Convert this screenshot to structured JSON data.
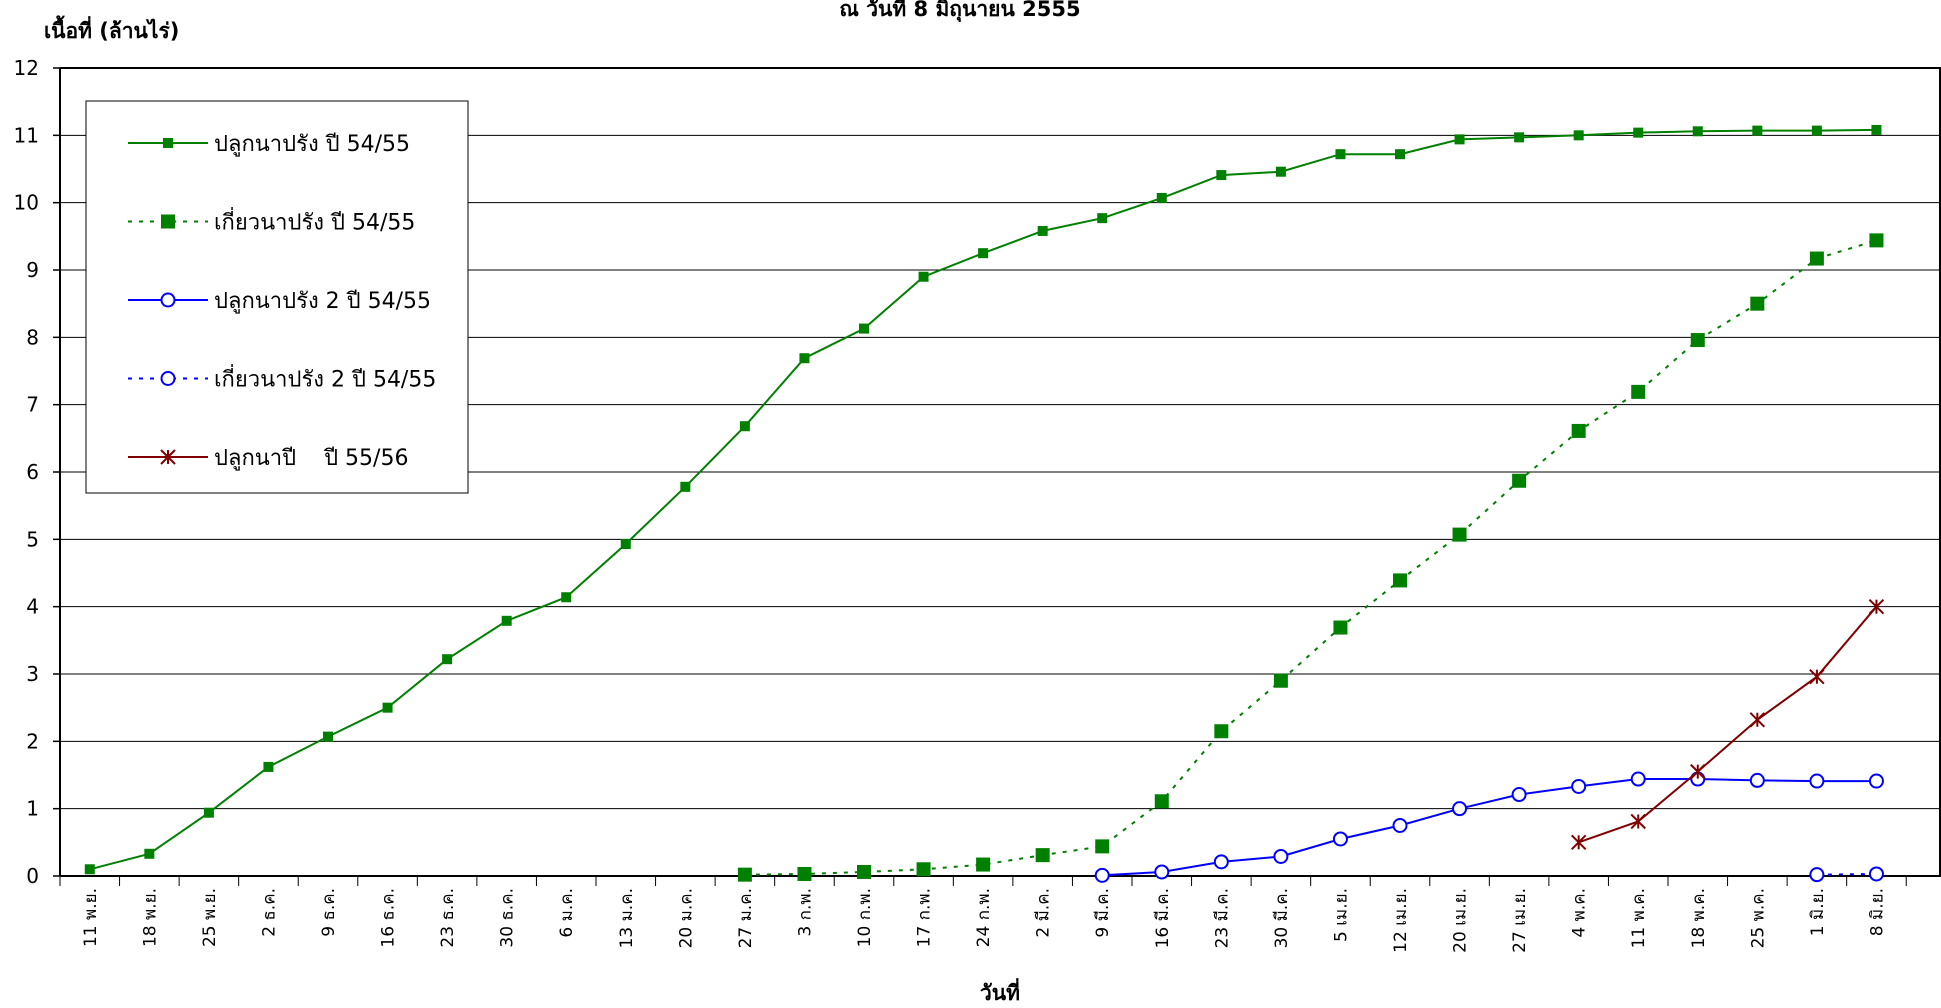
{
  "chart_data": {
    "type": "line",
    "title": "ณ  วันที่ 8 มิถุนายน 2555",
    "ylabel": "เนื้อที่ (ล้านไร่)",
    "xlabel": "วันที่",
    "ylim": [
      0,
      12
    ],
    "yticks": [
      "0",
      "1",
      "2",
      "3",
      "4",
      "5",
      "6",
      "7",
      "8",
      "9",
      "10",
      "11",
      "12"
    ],
    "grid": true,
    "legend_position": "top-left",
    "categories": [
      "11 พ.ย.",
      "18 พ.ย.",
      "25 พ.ย.",
      "2 ธ.ค.",
      "9 ธ.ค.",
      "16 ธ.ค.",
      "23 ธ.ค.",
      "30 ธ.ค.",
      "6 ม.ค.",
      "13 ม.ค.",
      "20 ม.ค.",
      "27 ม.ค.",
      "3 ก.พ.",
      "10 ก.พ.",
      "17 ก.พ.",
      "24 ก.พ.",
      "2 มี.ค.",
      "9 มี.ค.",
      "16 มี.ค.",
      "23 มี.ค.",
      "30 มี.ค.",
      "5 เม.ย.",
      "12 เม.ย.",
      "20 เม.ย.",
      "27 เม.ย.",
      "4 พ.ค.",
      "11 พ.ค.",
      "18 พ.ค.",
      "25 พ.ค.",
      "1 มิ.ย.",
      "8 มิ.ย."
    ],
    "series": [
      {
        "name": "ปลูกนาปรัง ปี 54/55",
        "color": "#008000",
        "line": "solid",
        "marker": "square-small",
        "values": [
          0.1,
          0.33,
          0.94,
          1.62,
          2.07,
          2.5,
          3.22,
          3.79,
          4.14,
          4.93,
          5.78,
          6.68,
          7.69,
          8.13,
          8.9,
          9.25,
          9.58,
          9.77,
          10.07,
          10.41,
          10.46,
          10.72,
          10.72,
          10.94,
          10.97,
          11.0,
          11.04,
          11.06,
          11.07,
          11.07,
          11.08
        ]
      },
      {
        "name": "เกี่ยวนาปรัง ปี 54/55",
        "color": "#008000",
        "line": "dotted",
        "marker": "square-large",
        "values": [
          null,
          null,
          null,
          null,
          null,
          null,
          null,
          null,
          null,
          null,
          null,
          0.02,
          0.03,
          0.06,
          0.1,
          0.17,
          0.31,
          0.44,
          1.11,
          2.15,
          2.9,
          3.69,
          4.39,
          5.07,
          5.87,
          6.61,
          7.19,
          7.96,
          8.5,
          9.17,
          9.44
        ]
      },
      {
        "name": "ปลูกนาปรัง 2 ปี 54/55",
        "color": "#0000ff",
        "line": "solid",
        "marker": "circle",
        "values": [
          null,
          null,
          null,
          null,
          null,
          null,
          null,
          null,
          null,
          null,
          null,
          null,
          null,
          null,
          null,
          null,
          null,
          0.01,
          0.06,
          0.21,
          0.29,
          0.55,
          0.75,
          1.0,
          1.21,
          1.33,
          1.44,
          1.44,
          1.42,
          1.41,
          1.41
        ]
      },
      {
        "name": "เกี่ยวนาปรัง 2 ปี 54/55",
        "color": "#0000ff",
        "line": "dotted",
        "marker": "circle",
        "values": [
          null,
          null,
          null,
          null,
          null,
          null,
          null,
          null,
          null,
          null,
          null,
          null,
          null,
          null,
          null,
          null,
          null,
          null,
          null,
          null,
          null,
          null,
          null,
          null,
          null,
          null,
          null,
          null,
          null,
          0.02,
          0.03
        ]
      },
      {
        "name": "ปลูกนาปี    ปี 55/56",
        "color": "#800000",
        "line": "solid",
        "marker": "star",
        "values": [
          null,
          null,
          null,
          null,
          null,
          null,
          null,
          null,
          null,
          null,
          null,
          null,
          null,
          null,
          null,
          null,
          null,
          null,
          null,
          null,
          null,
          null,
          null,
          null,
          null,
          0.5,
          0.81,
          1.55,
          2.32,
          2.96,
          4.0
        ]
      }
    ]
  }
}
